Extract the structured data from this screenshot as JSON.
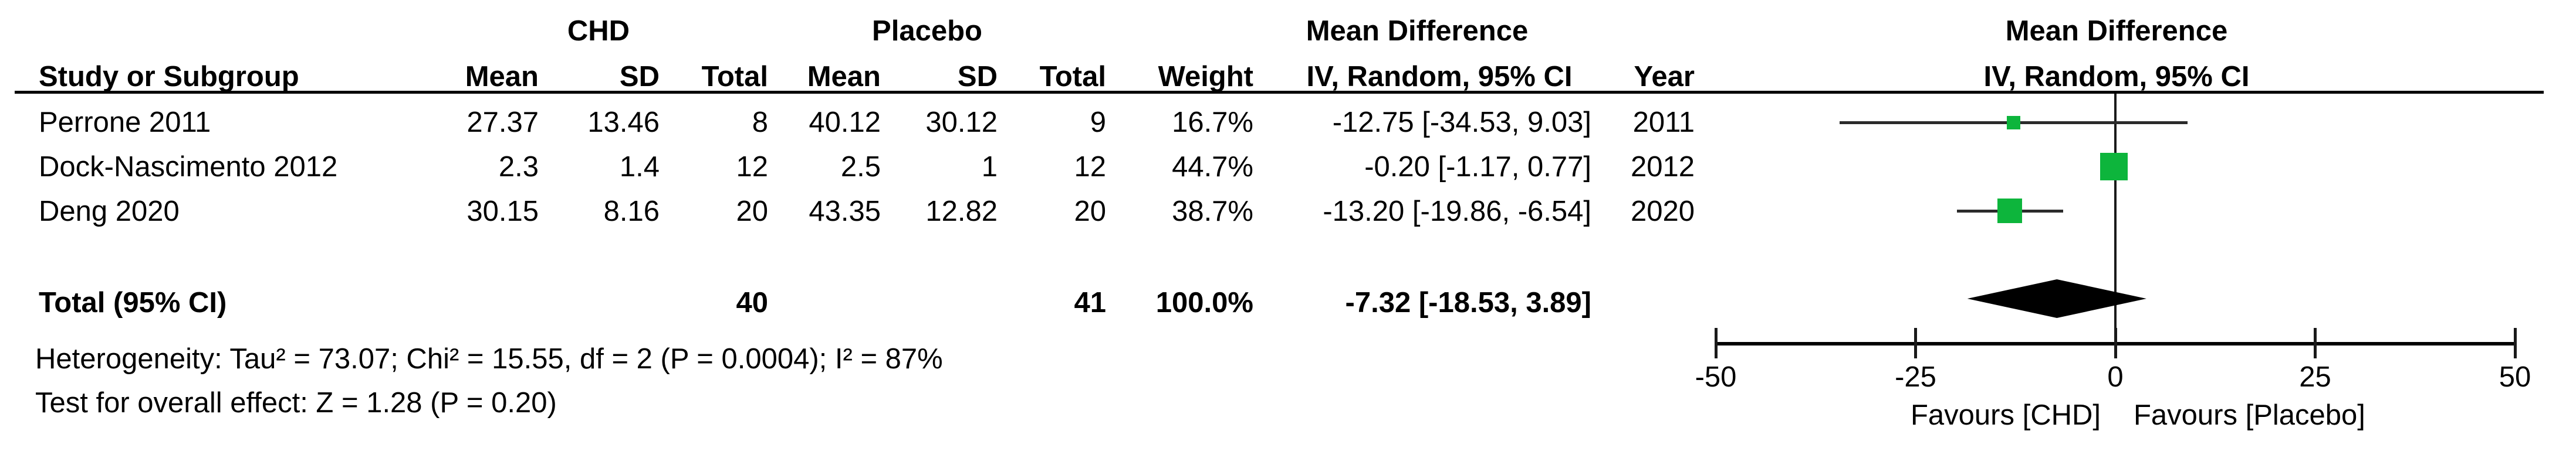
{
  "header": {
    "group1": "CHD",
    "group2": "Placebo",
    "mean_difference": "Mean Difference",
    "method": "IV, Random, 95% CI",
    "cols": {
      "study": "Study or Subgroup",
      "mean": "Mean",
      "sd": "SD",
      "total": "Total",
      "weight": "Weight",
      "ci": "IV, Random, 95% CI",
      "year": "Year"
    }
  },
  "studies": [
    {
      "name": "Perrone 2011",
      "mean1": "27.37",
      "sd1": "13.46",
      "total1": "8",
      "mean2": "40.12",
      "sd2": "30.12",
      "total2": "9",
      "weight": "16.7%",
      "ci": "-12.75 [-34.53, 9.03]",
      "year": "2011"
    },
    {
      "name": "Dock-Nascimento 2012",
      "mean1": "2.3",
      "sd1": "1.4",
      "total1": "12",
      "mean2": "2.5",
      "sd2": "1",
      "total2": "12",
      "weight": "44.7%",
      "ci": "-0.20 [-1.17, 0.77]",
      "year": "2012"
    },
    {
      "name": "Deng 2020",
      "mean1": "30.15",
      "sd1": "8.16",
      "total1": "20",
      "mean2": "43.35",
      "sd2": "12.82",
      "total2": "20",
      "weight": "38.7%",
      "ci": "-13.20 [-19.86, -6.54]",
      "year": "2020"
    }
  ],
  "total_row": {
    "label": "Total (95% CI)",
    "total1": "40",
    "total2": "41",
    "weight": "100.0%",
    "ci": "-7.32 [-18.53, 3.89]"
  },
  "footnotes": {
    "heterogeneity": "Heterogeneity: Tau² = 73.07; Chi² = 15.55, df = 2 (P = 0.0004); I² = 87%",
    "overall_effect": "Test for overall effect: Z = 1.28 (P = 0.20)"
  },
  "axis": {
    "favours_left": "Favours [CHD]",
    "favours_right": "Favours [Placebo]"
  },
  "colors": {
    "marker_green": "#0db53c",
    "diamond_black": "#000000",
    "ci_line": "#2b2b2b"
  },
  "chart_data": {
    "type": "forest",
    "title": "Mean Difference",
    "method": "IV, Random, 95% CI",
    "xlim": [
      -50,
      50
    ],
    "x_ticks": [
      -50,
      -25,
      0,
      25,
      50
    ],
    "x_axis_labels": [
      "Favours [CHD]",
      "Favours [Placebo]"
    ],
    "studies": [
      {
        "study": "Perrone 2011",
        "year": 2011,
        "chd": {
          "mean": 27.37,
          "sd": 13.46,
          "total": 8
        },
        "placebo": {
          "mean": 40.12,
          "sd": 30.12,
          "total": 9
        },
        "weight_pct": 16.7,
        "md": -12.75,
        "ci_low": -34.53,
        "ci_high": 9.03
      },
      {
        "study": "Dock-Nascimento 2012",
        "year": 2012,
        "chd": {
          "mean": 2.3,
          "sd": 1.4,
          "total": 12
        },
        "placebo": {
          "mean": 2.5,
          "sd": 1,
          "total": 12
        },
        "weight_pct": 44.7,
        "md": -0.2,
        "ci_low": -1.17,
        "ci_high": 0.77
      },
      {
        "study": "Deng 2020",
        "year": 2020,
        "chd": {
          "mean": 30.15,
          "sd": 8.16,
          "total": 20
        },
        "placebo": {
          "mean": 43.35,
          "sd": 12.82,
          "total": 20
        },
        "weight_pct": 38.7,
        "md": -13.2,
        "ci_low": -19.86,
        "ci_high": -6.54
      }
    ],
    "total": {
      "total_chd": 40,
      "total_placebo": 41,
      "weight_pct": 100.0,
      "md": -7.32,
      "ci_low": -18.53,
      "ci_high": 3.89
    },
    "heterogeneity": {
      "tau2": 73.07,
      "chi2": 15.55,
      "df": 2,
      "p": "0.0004",
      "i2_pct": 87
    },
    "overall_effect": {
      "z": 1.28,
      "p": "0.20"
    },
    "legend_position": "none",
    "grid": false
  }
}
